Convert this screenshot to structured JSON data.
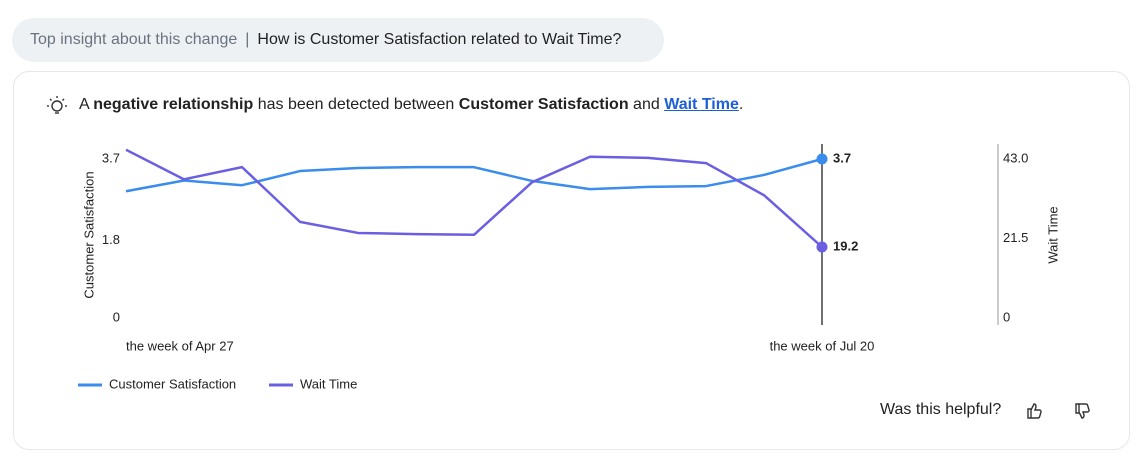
{
  "header": {
    "label": "Top insight about this change",
    "separator": "|",
    "question": "How is Customer Satisfaction related to Wait Time?"
  },
  "insight": {
    "parts": [
      "A ",
      "negative relationship",
      " has been detected between ",
      "Customer Satisfaction",
      " and ",
      "Wait Time",
      "."
    ]
  },
  "chart_data": {
    "type": "line",
    "y_label": "Customer Satisfaction",
    "y2_label": "Wait Time",
    "categories": [
      "the week of Apr 27",
      null,
      null,
      null,
      null,
      null,
      null,
      null,
      null,
      null,
      null,
      null,
      "the week of Jul 20"
    ],
    "series": [
      {
        "name": "Customer Satisfaction",
        "color": "#3b8ded",
        "values": [
          2.95,
          3.2,
          3.09,
          3.42,
          3.49,
          3.51,
          3.51,
          3.19,
          3.0,
          3.05,
          3.07,
          3.33,
          3.7
        ]
      },
      {
        "name": "Wait Time",
        "color": "#6a5fe3",
        "axis": "y2",
        "values": [
          45.5,
          37.5,
          40.8,
          26.0,
          23.0,
          22.7,
          22.5,
          36.7,
          43.6,
          43.3,
          41.9,
          33.2,
          19.2
        ]
      }
    ],
    "ylim": [
      0,
      3.7
    ],
    "yticks": [
      0,
      1.8,
      3.7
    ],
    "y2lim": [
      0,
      43
    ],
    "y2ticks": [
      0,
      21.5,
      {
        "value": 43,
        "label": "43.0"
      }
    ],
    "grid": false
  },
  "footer": {
    "question": "Was this helpful?"
  }
}
